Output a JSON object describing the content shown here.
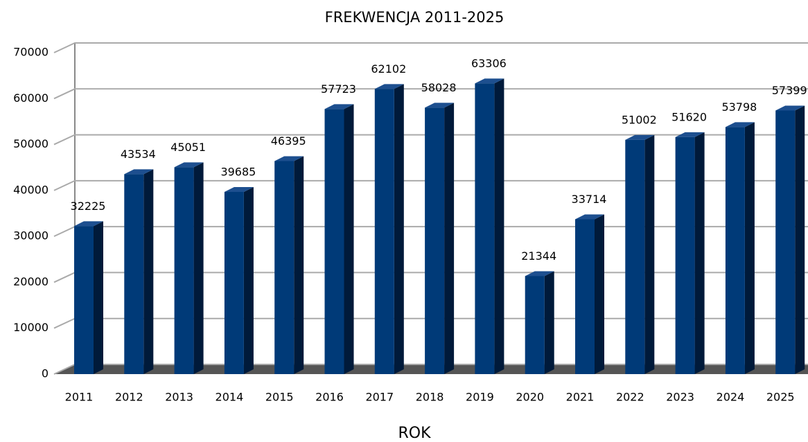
{
  "chart_data": {
    "type": "bar",
    "title": "FREKWENCJA 2011-2025",
    "x_label": "ROK",
    "categories": [
      "2011",
      "2012",
      "2013",
      "2014",
      "2015",
      "2016",
      "2017",
      "2018",
      "2019",
      "2020",
      "2021",
      "2022",
      "2023",
      "2024",
      "2025"
    ],
    "values": [
      32225,
      43534,
      45051,
      39685,
      46395,
      57723,
      62102,
      58028,
      63306,
      21344,
      33714,
      51002,
      51620,
      53798,
      57399
    ],
    "color": "#003a78",
    "ylim": [
      0,
      70000
    ],
    "yticks": [
      0,
      10000,
      20000,
      30000,
      40000,
      50000,
      60000,
      70000
    ],
    "grid": true
  }
}
